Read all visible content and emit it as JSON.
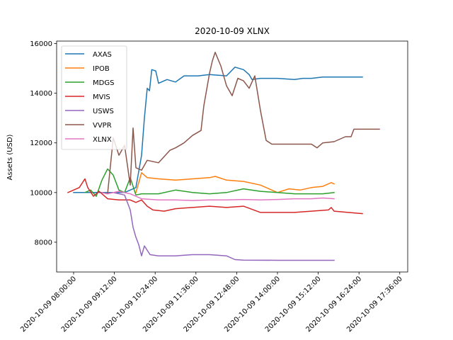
{
  "chart_data": {
    "type": "line",
    "title": "2020-10-09 XLNX",
    "xlabel": "",
    "ylabel": "Assets (USD)",
    "x_ticks": [
      "2020-10-09 08:00:00",
      "2020-10-09 09:12:00",
      "2020-10-09 10:24:00",
      "2020-10-09 11:36:00",
      "2020-10-09 12:48:00",
      "2020-10-09 14:00:00",
      "2020-10-09 15:12:00",
      "2020-10-09 16:24:00",
      "2020-10-09 17:36:00"
    ],
    "y_ticks": [
      8000,
      10000,
      12000,
      14000,
      16000
    ],
    "xlim": [
      "2020-10-09 07:30:00",
      "2020-10-09 17:50:00"
    ],
    "ylim": [
      6800,
      16100
    ],
    "legend": "upper-left",
    "grid": false,
    "series": [
      {
        "name": "AXAS",
        "color": "#1f77b4",
        "points": [
          [
            "2020-10-09 08:00",
            10000
          ],
          [
            "2020-10-09 09:30",
            10000
          ],
          [
            "2020-10-09 09:50",
            10200
          ],
          [
            "2020-10-09 10:00",
            11500
          ],
          [
            "2020-10-09 10:05",
            13000
          ],
          [
            "2020-10-09 10:10",
            14200
          ],
          [
            "2020-10-09 10:14",
            14100
          ],
          [
            "2020-10-09 10:18",
            14950
          ],
          [
            "2020-10-09 10:25",
            14900
          ],
          [
            "2020-10-09 10:30",
            14400
          ],
          [
            "2020-10-09 10:45",
            14550
          ],
          [
            "2020-10-09 11:00",
            14450
          ],
          [
            "2020-10-09 11:15",
            14700
          ],
          [
            "2020-10-09 11:40",
            14700
          ],
          [
            "2020-10-09 12:00",
            14750
          ],
          [
            "2020-10-09 12:30",
            14700
          ],
          [
            "2020-10-09 12:45",
            15050
          ],
          [
            "2020-10-09 13:00",
            14950
          ],
          [
            "2020-10-09 13:10",
            14750
          ],
          [
            "2020-10-09 13:15",
            14550
          ],
          [
            "2020-10-09 13:30",
            14600
          ],
          [
            "2020-10-09 14:00",
            14600
          ],
          [
            "2020-10-09 14:30",
            14550
          ],
          [
            "2020-10-09 14:45",
            14600
          ],
          [
            "2020-10-09 15:00",
            14600
          ],
          [
            "2020-10-09 15:20",
            14650
          ],
          [
            "2020-10-09 15:40",
            14650
          ],
          [
            "2020-10-09 16:30",
            14650
          ]
        ]
      },
      {
        "name": "IPOB",
        "color": "#ff7f0e",
        "points": [
          [
            "2020-10-09 09:50",
            10000
          ],
          [
            "2020-10-09 10:00",
            10800
          ],
          [
            "2020-10-09 10:10",
            10600
          ],
          [
            "2020-10-09 10:30",
            10550
          ],
          [
            "2020-10-09 11:00",
            10500
          ],
          [
            "2020-10-09 11:30",
            10550
          ],
          [
            "2020-10-09 12:00",
            10600
          ],
          [
            "2020-10-09 12:10",
            10650
          ],
          [
            "2020-10-09 12:30",
            10500
          ],
          [
            "2020-10-09 13:00",
            10450
          ],
          [
            "2020-10-09 13:30",
            10300
          ],
          [
            "2020-10-09 13:50",
            10100
          ],
          [
            "2020-10-09 14:00",
            10000
          ],
          [
            "2020-10-09 14:20",
            10150
          ],
          [
            "2020-10-09 14:40",
            10100
          ],
          [
            "2020-10-09 15:00",
            10200
          ],
          [
            "2020-10-09 15:20",
            10250
          ],
          [
            "2020-10-09 15:35",
            10400
          ],
          [
            "2020-10-09 15:40",
            10350
          ]
        ]
      },
      {
        "name": "MDGS",
        "color": "#2ca02c",
        "points": [
          [
            "2020-10-09 08:20",
            10000
          ],
          [
            "2020-10-09 08:30",
            10100
          ],
          [
            "2020-10-09 08:40",
            9850
          ],
          [
            "2020-10-09 08:50",
            10500
          ],
          [
            "2020-10-09 09:00",
            10950
          ],
          [
            "2020-10-09 09:10",
            10700
          ],
          [
            "2020-10-09 09:20",
            10100
          ],
          [
            "2020-10-09 09:30",
            10000
          ],
          [
            "2020-10-09 09:40",
            10600
          ],
          [
            "2020-10-09 09:50",
            9900
          ],
          [
            "2020-10-09 10:00",
            9950
          ],
          [
            "2020-10-09 10:30",
            9950
          ],
          [
            "2020-10-09 11:00",
            10100
          ],
          [
            "2020-10-09 11:30",
            10000
          ],
          [
            "2020-10-09 12:00",
            9950
          ],
          [
            "2020-10-09 12:30",
            10000
          ],
          [
            "2020-10-09 13:00",
            10150
          ],
          [
            "2020-10-09 13:30",
            10050
          ],
          [
            "2020-10-09 14:00",
            10000
          ],
          [
            "2020-10-09 14:30",
            9950
          ],
          [
            "2020-10-09 15:00",
            9950
          ],
          [
            "2020-10-09 15:20",
            9950
          ],
          [
            "2020-10-09 15:40",
            10000
          ]
        ]
      },
      {
        "name": "MVIS",
        "color": "#d62728",
        "points": [
          [
            "2020-10-09 07:50",
            10000
          ],
          [
            "2020-10-09 08:10",
            10200
          ],
          [
            "2020-10-09 08:20",
            10550
          ],
          [
            "2020-10-09 08:25",
            10200
          ],
          [
            "2020-10-09 08:35",
            9850
          ],
          [
            "2020-10-09 08:45",
            10050
          ],
          [
            "2020-10-09 09:00",
            9750
          ],
          [
            "2020-10-09 09:20",
            9700
          ],
          [
            "2020-10-09 09:40",
            9700
          ],
          [
            "2020-10-09 09:50",
            9600
          ],
          [
            "2020-10-09 10:00",
            9700
          ],
          [
            "2020-10-09 10:10",
            9450
          ],
          [
            "2020-10-09 10:20",
            9300
          ],
          [
            "2020-10-09 10:40",
            9250
          ],
          [
            "2020-10-09 11:00",
            9350
          ],
          [
            "2020-10-09 11:30",
            9400
          ],
          [
            "2020-10-09 12:00",
            9450
          ],
          [
            "2020-10-09 12:30",
            9400
          ],
          [
            "2020-10-09 13:00",
            9450
          ],
          [
            "2020-10-09 13:30",
            9200
          ],
          [
            "2020-10-09 14:00",
            9200
          ],
          [
            "2020-10-09 14:30",
            9200
          ],
          [
            "2020-10-09 15:00",
            9250
          ],
          [
            "2020-10-09 15:30",
            9300
          ],
          [
            "2020-10-09 15:35",
            9400
          ],
          [
            "2020-10-09 15:40",
            9250
          ],
          [
            "2020-10-09 16:30",
            9150
          ]
        ]
      },
      {
        "name": "USWS",
        "color": "#9467bd",
        "points": [
          [
            "2020-10-09 09:10",
            10000
          ],
          [
            "2020-10-09 09:30",
            9900
          ],
          [
            "2020-10-09 09:40",
            9300
          ],
          [
            "2020-10-09 09:45",
            8600
          ],
          [
            "2020-10-09 09:50",
            8200
          ],
          [
            "2020-10-09 09:55",
            7900
          ],
          [
            "2020-10-09 10:00",
            7450
          ],
          [
            "2020-10-09 10:05",
            7850
          ],
          [
            "2020-10-09 10:15",
            7500
          ],
          [
            "2020-10-09 10:30",
            7450
          ],
          [
            "2020-10-09 11:00",
            7450
          ],
          [
            "2020-10-09 11:30",
            7500
          ],
          [
            "2020-10-09 12:00",
            7500
          ],
          [
            "2020-10-09 12:30",
            7450
          ],
          [
            "2020-10-09 12:45",
            7300
          ],
          [
            "2020-10-09 13:00",
            7280
          ],
          [
            "2020-10-09 14:00",
            7270
          ],
          [
            "2020-10-09 15:00",
            7270
          ],
          [
            "2020-10-09 15:40",
            7270
          ]
        ]
      },
      {
        "name": "VVPR",
        "color": "#8c564b",
        "points": [
          [
            "2020-10-09 08:50",
            10000
          ],
          [
            "2020-10-09 09:00",
            9950
          ],
          [
            "2020-10-09 09:10",
            12200
          ],
          [
            "2020-10-09 09:20",
            11500
          ],
          [
            "2020-10-09 09:30",
            11900
          ],
          [
            "2020-10-09 09:40",
            10300
          ],
          [
            "2020-10-09 09:45",
            12600
          ],
          [
            "2020-10-09 09:50",
            11000
          ],
          [
            "2020-10-09 10:00",
            10900
          ],
          [
            "2020-10-09 10:10",
            11300
          ],
          [
            "2020-10-09 10:30",
            11200
          ],
          [
            "2020-10-09 10:50",
            11700
          ],
          [
            "2020-10-09 11:00",
            11800
          ],
          [
            "2020-10-09 11:15",
            12000
          ],
          [
            "2020-10-09 11:30",
            12300
          ],
          [
            "2020-10-09 11:45",
            12500
          ],
          [
            "2020-10-09 11:50",
            13500
          ],
          [
            "2020-10-09 12:00",
            14800
          ],
          [
            "2020-10-09 12:05",
            15300
          ],
          [
            "2020-10-09 12:10",
            15650
          ],
          [
            "2020-10-09 12:20",
            15100
          ],
          [
            "2020-10-09 12:30",
            14300
          ],
          [
            "2020-10-09 12:40",
            13900
          ],
          [
            "2020-10-09 12:50",
            14600
          ],
          [
            "2020-10-09 13:00",
            14500
          ],
          [
            "2020-10-09 13:10",
            14200
          ],
          [
            "2020-10-09 13:20",
            14700
          ],
          [
            "2020-10-09 13:30",
            13300
          ],
          [
            "2020-10-09 13:40",
            12100
          ],
          [
            "2020-10-09 13:50",
            11950
          ],
          [
            "2020-10-09 14:30",
            11950
          ],
          [
            "2020-10-09 15:00",
            11950
          ],
          [
            "2020-10-09 15:10",
            11800
          ],
          [
            "2020-10-09 15:20",
            12000
          ],
          [
            "2020-10-09 15:40",
            12050
          ],
          [
            "2020-10-09 16:00",
            12250
          ],
          [
            "2020-10-09 16:10",
            12250
          ],
          [
            "2020-10-09 16:15",
            12550
          ],
          [
            "2020-10-09 17:00",
            12550
          ]
        ]
      },
      {
        "name": "XLNX",
        "color": "#e377c2",
        "points": [
          [
            "2020-10-09 08:50",
            10000
          ],
          [
            "2020-10-09 09:00",
            9950
          ],
          [
            "2020-10-09 09:20",
            10050
          ],
          [
            "2020-10-09 09:40",
            9950
          ],
          [
            "2020-10-09 10:00",
            9750
          ],
          [
            "2020-10-09 10:30",
            9700
          ],
          [
            "2020-10-09 11:00",
            9700
          ],
          [
            "2020-10-09 11:30",
            9680
          ],
          [
            "2020-10-09 12:00",
            9700
          ],
          [
            "2020-10-09 12:30",
            9700
          ],
          [
            "2020-10-09 13:00",
            9720
          ],
          [
            "2020-10-09 13:30",
            9700
          ],
          [
            "2020-10-09 14:00",
            9720
          ],
          [
            "2020-10-09 14:30",
            9750
          ],
          [
            "2020-10-09 15:00",
            9750
          ],
          [
            "2020-10-09 15:20",
            9780
          ],
          [
            "2020-10-09 15:40",
            9750
          ]
        ]
      }
    ]
  }
}
